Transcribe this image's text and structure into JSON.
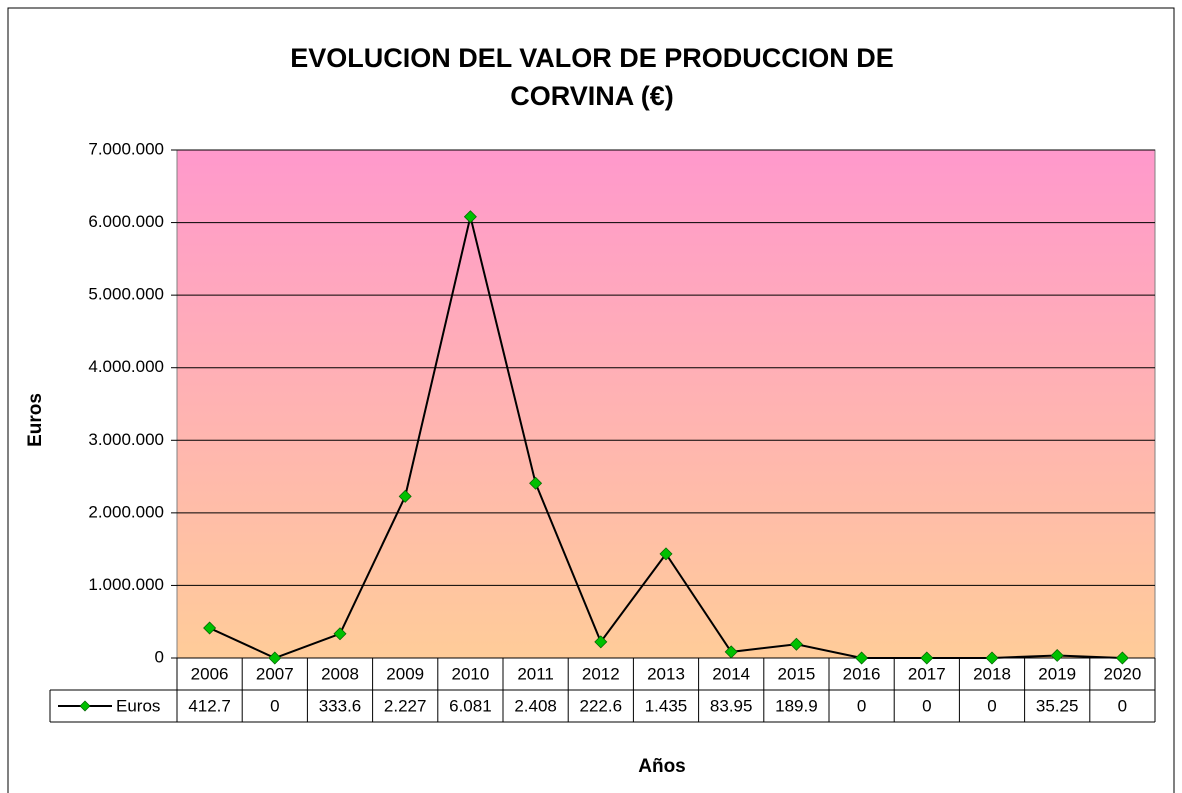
{
  "chart_data": {
    "type": "line",
    "title": "EVOLUCION DEL VALOR DE PRODUCCION DE CORVINA (€)",
    "title_lines": [
      "EVOLUCION DEL VALOR DE PRODUCCION DE",
      "CORVINA (€)"
    ],
    "y_label": "Euros",
    "x_label": "Años",
    "categories": [
      "2006",
      "2007",
      "2008",
      "2009",
      "2010",
      "2011",
      "2012",
      "2013",
      "2014",
      "2015",
      "2016",
      "2017",
      "2018",
      "2019",
      "2020"
    ],
    "series": [
      {
        "name": "Euros",
        "color": "#000000",
        "marker_color": "#00c000",
        "values": [
          412700,
          0,
          333600,
          2227000,
          6081000,
          2408000,
          222600,
          1435000,
          83950,
          189900,
          0,
          0,
          0,
          35250,
          0
        ],
        "value_labels": [
          "412.7",
          "0",
          "333.6",
          "2.227",
          "6.081",
          "2.408",
          "222.6",
          "1.435",
          "83.95",
          "189.9",
          "0",
          "0",
          "0",
          "35.25",
          "0"
        ]
      }
    ],
    "ylim": [
      0,
      7000000
    ],
    "yticks": [
      0,
      {
        "value": 1000000,
        "label": "1.000.000"
      },
      {
        "value": 2000000,
        "label": "2.000.000"
      },
      {
        "value": 3000000,
        "label": "3.000.000"
      },
      {
        "value": 4000000,
        "label": "4.000.000"
      },
      {
        "value": 5000000,
        "label": "5.000.000"
      },
      {
        "value": 6000000,
        "label": "6.000.000"
      },
      {
        "value": 7000000,
        "label": "7.000.000"
      }
    ],
    "grid": true,
    "background_gradient": [
      "#ff99cc",
      "#ffcc99"
    ]
  }
}
